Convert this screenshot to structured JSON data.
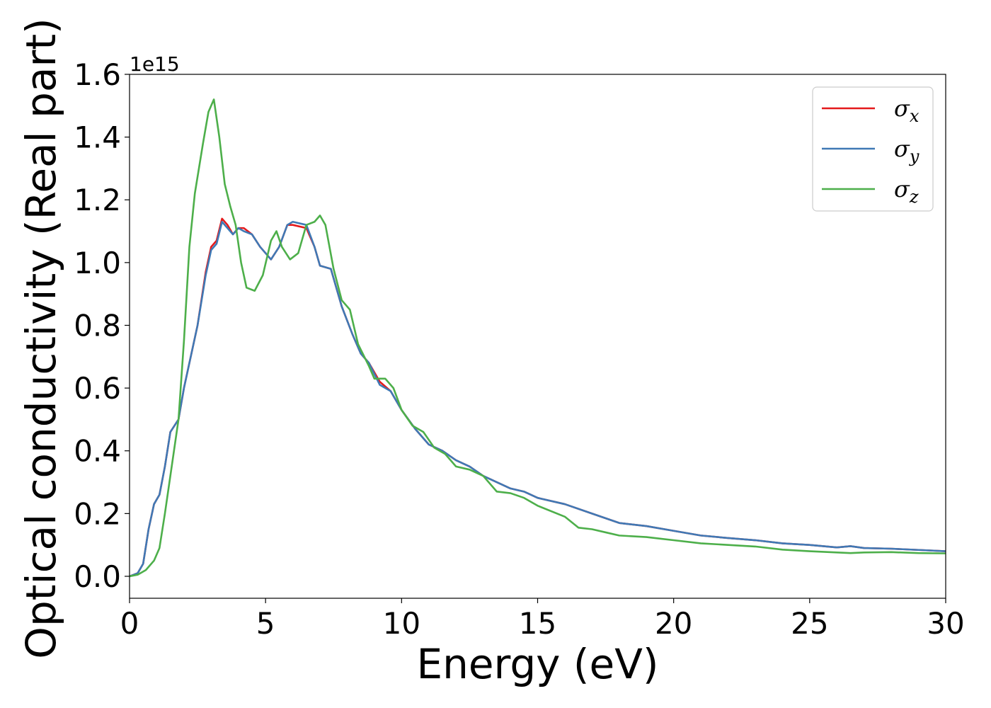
{
  "chart_data": {
    "type": "line",
    "xlabel": "Energy (eV)",
    "ylabel": "Optical conductivity (Real part)",
    "y_offset_label": "1e15",
    "xlim": [
      0,
      30
    ],
    "ylim": [
      -0.07,
      1.6
    ],
    "xticks": [
      0,
      5,
      10,
      15,
      20,
      25,
      30
    ],
    "xtick_labels": [
      "0",
      "5",
      "10",
      "15",
      "20",
      "25",
      "30"
    ],
    "yticks": [
      0.0,
      0.2,
      0.4,
      0.6,
      0.8,
      1.0,
      1.2,
      1.4,
      1.6
    ],
    "ytick_labels": [
      "0.0",
      "0.2",
      "0.4",
      "0.6",
      "0.8",
      "1.0",
      "1.2",
      "1.4",
      "1.6"
    ],
    "grid": false,
    "legend_position": "top-right",
    "series": [
      {
        "name": "σ",
        "sub": "x",
        "color": "#e41a1c",
        "points": [
          [
            0,
            0.0
          ],
          [
            0.3,
            0.01
          ],
          [
            0.5,
            0.04
          ],
          [
            0.7,
            0.15
          ],
          [
            0.9,
            0.23
          ],
          [
            1.1,
            0.26
          ],
          [
            1.3,
            0.35
          ],
          [
            1.5,
            0.46
          ],
          [
            1.8,
            0.5
          ],
          [
            2.0,
            0.6
          ],
          [
            2.2,
            0.68
          ],
          [
            2.5,
            0.8
          ],
          [
            2.8,
            0.97
          ],
          [
            3.0,
            1.05
          ],
          [
            3.2,
            1.07
          ],
          [
            3.4,
            1.14
          ],
          [
            3.6,
            1.12
          ],
          [
            3.8,
            1.09
          ],
          [
            4.0,
            1.11
          ],
          [
            4.2,
            1.11
          ],
          [
            4.5,
            1.09
          ],
          [
            4.8,
            1.05
          ],
          [
            5.2,
            1.01
          ],
          [
            5.5,
            1.05
          ],
          [
            5.8,
            1.12
          ],
          [
            6.0,
            1.12
          ],
          [
            6.5,
            1.11
          ],
          [
            6.8,
            1.05
          ],
          [
            7.0,
            0.99
          ],
          [
            7.4,
            0.98
          ],
          [
            7.8,
            0.86
          ],
          [
            8.2,
            0.77
          ],
          [
            8.5,
            0.71
          ],
          [
            8.8,
            0.68
          ],
          [
            9.2,
            0.62
          ],
          [
            9.6,
            0.59
          ],
          [
            10.0,
            0.53
          ],
          [
            10.5,
            0.47
          ],
          [
            11.0,
            0.42
          ],
          [
            11.5,
            0.4
          ],
          [
            12.0,
            0.37
          ],
          [
            12.5,
            0.35
          ],
          [
            13.0,
            0.32
          ],
          [
            13.5,
            0.3
          ],
          [
            14.0,
            0.28
          ],
          [
            14.5,
            0.27
          ],
          [
            15.0,
            0.25
          ],
          [
            16.0,
            0.23
          ],
          [
            17.0,
            0.2
          ],
          [
            18.0,
            0.17
          ],
          [
            19.0,
            0.16
          ],
          [
            20.0,
            0.145
          ],
          [
            21.0,
            0.13
          ],
          [
            22.0,
            0.122
          ],
          [
            23.0,
            0.115
          ],
          [
            24.0,
            0.105
          ],
          [
            25.0,
            0.1
          ],
          [
            26.0,
            0.092
          ],
          [
            26.5,
            0.096
          ],
          [
            27.0,
            0.09
          ],
          [
            28.0,
            0.088
          ],
          [
            29.0,
            0.084
          ],
          [
            30.0,
            0.08
          ]
        ]
      },
      {
        "name": "σ",
        "sub": "y",
        "color": "#3f79b5",
        "points": [
          [
            0,
            0.0
          ],
          [
            0.3,
            0.01
          ],
          [
            0.5,
            0.04
          ],
          [
            0.7,
            0.15
          ],
          [
            0.9,
            0.23
          ],
          [
            1.1,
            0.26
          ],
          [
            1.3,
            0.35
          ],
          [
            1.5,
            0.46
          ],
          [
            1.8,
            0.5
          ],
          [
            2.0,
            0.6
          ],
          [
            2.2,
            0.68
          ],
          [
            2.5,
            0.8
          ],
          [
            2.8,
            0.96
          ],
          [
            3.0,
            1.04
          ],
          [
            3.2,
            1.06
          ],
          [
            3.4,
            1.13
          ],
          [
            3.6,
            1.11
          ],
          [
            3.8,
            1.09
          ],
          [
            4.0,
            1.11
          ],
          [
            4.2,
            1.1
          ],
          [
            4.5,
            1.09
          ],
          [
            4.8,
            1.05
          ],
          [
            5.2,
            1.01
          ],
          [
            5.5,
            1.05
          ],
          [
            5.8,
            1.12
          ],
          [
            6.0,
            1.13
          ],
          [
            6.5,
            1.12
          ],
          [
            6.8,
            1.05
          ],
          [
            7.0,
            0.99
          ],
          [
            7.4,
            0.98
          ],
          [
            7.8,
            0.86
          ],
          [
            8.2,
            0.77
          ],
          [
            8.5,
            0.71
          ],
          [
            8.8,
            0.68
          ],
          [
            9.2,
            0.61
          ],
          [
            9.6,
            0.59
          ],
          [
            10.0,
            0.53
          ],
          [
            10.5,
            0.47
          ],
          [
            11.0,
            0.42
          ],
          [
            11.5,
            0.4
          ],
          [
            12.0,
            0.37
          ],
          [
            12.5,
            0.35
          ],
          [
            13.0,
            0.32
          ],
          [
            13.5,
            0.3
          ],
          [
            14.0,
            0.28
          ],
          [
            14.5,
            0.27
          ],
          [
            15.0,
            0.25
          ],
          [
            16.0,
            0.23
          ],
          [
            17.0,
            0.2
          ],
          [
            18.0,
            0.17
          ],
          [
            19.0,
            0.16
          ],
          [
            20.0,
            0.145
          ],
          [
            21.0,
            0.13
          ],
          [
            22.0,
            0.122
          ],
          [
            23.0,
            0.115
          ],
          [
            24.0,
            0.105
          ],
          [
            25.0,
            0.1
          ],
          [
            26.0,
            0.092
          ],
          [
            26.5,
            0.096
          ],
          [
            27.0,
            0.09
          ],
          [
            28.0,
            0.088
          ],
          [
            29.0,
            0.084
          ],
          [
            30.0,
            0.08
          ]
        ]
      },
      {
        "name": "σ",
        "sub": "z",
        "color": "#4daf4a",
        "points": [
          [
            0,
            0.0
          ],
          [
            0.3,
            0.005
          ],
          [
            0.6,
            0.02
          ],
          [
            0.9,
            0.05
          ],
          [
            1.1,
            0.09
          ],
          [
            1.3,
            0.2
          ],
          [
            1.5,
            0.32
          ],
          [
            1.8,
            0.5
          ],
          [
            2.0,
            0.75
          ],
          [
            2.2,
            1.05
          ],
          [
            2.4,
            1.22
          ],
          [
            2.7,
            1.38
          ],
          [
            2.9,
            1.48
          ],
          [
            3.1,
            1.52
          ],
          [
            3.3,
            1.4
          ],
          [
            3.5,
            1.25
          ],
          [
            3.7,
            1.18
          ],
          [
            3.9,
            1.12
          ],
          [
            4.1,
            1.0
          ],
          [
            4.3,
            0.92
          ],
          [
            4.6,
            0.91
          ],
          [
            4.9,
            0.96
          ],
          [
            5.2,
            1.07
          ],
          [
            5.4,
            1.1
          ],
          [
            5.6,
            1.05
          ],
          [
            5.9,
            1.01
          ],
          [
            6.2,
            1.03
          ],
          [
            6.5,
            1.12
          ],
          [
            6.8,
            1.13
          ],
          [
            7.0,
            1.15
          ],
          [
            7.2,
            1.12
          ],
          [
            7.5,
            0.98
          ],
          [
            7.8,
            0.88
          ],
          [
            8.1,
            0.85
          ],
          [
            8.4,
            0.74
          ],
          [
            8.8,
            0.67
          ],
          [
            9.0,
            0.63
          ],
          [
            9.4,
            0.63
          ],
          [
            9.7,
            0.6
          ],
          [
            10.0,
            0.53
          ],
          [
            10.4,
            0.48
          ],
          [
            10.8,
            0.46
          ],
          [
            11.2,
            0.41
          ],
          [
            11.6,
            0.39
          ],
          [
            12.0,
            0.35
          ],
          [
            12.5,
            0.34
          ],
          [
            13.0,
            0.32
          ],
          [
            13.5,
            0.27
          ],
          [
            14.0,
            0.265
          ],
          [
            14.5,
            0.25
          ],
          [
            15.0,
            0.225
          ],
          [
            16.0,
            0.19
          ],
          [
            16.5,
            0.155
          ],
          [
            17.0,
            0.15
          ],
          [
            17.5,
            0.14
          ],
          [
            18.0,
            0.13
          ],
          [
            19.0,
            0.125
          ],
          [
            20.0,
            0.115
          ],
          [
            21.0,
            0.105
          ],
          [
            22.0,
            0.1
          ],
          [
            23.0,
            0.095
          ],
          [
            24.0,
            0.085
          ],
          [
            25.0,
            0.08
          ],
          [
            26.0,
            0.076
          ],
          [
            26.5,
            0.074
          ],
          [
            27.0,
            0.076
          ],
          [
            28.0,
            0.077
          ],
          [
            29.0,
            0.074
          ],
          [
            30.0,
            0.073
          ]
        ]
      }
    ]
  }
}
